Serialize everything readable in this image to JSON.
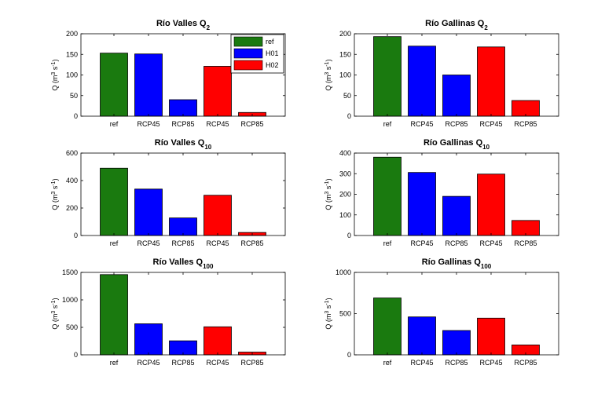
{
  "figure": {
    "legend": {
      "position": "top-right",
      "entries": [
        {
          "label": "ref",
          "color": "#1a7a0f"
        },
        {
          "label": "H01",
          "color": "#0000ff"
        },
        {
          "label": "H02",
          "color": "#ff0000"
        }
      ]
    }
  },
  "chart_data": [
    {
      "type": "bar",
      "title": {
        "main": "Río Valles Q",
        "sub": "2"
      },
      "ylabel": {
        "base": "Q (m",
        "sup1": "3",
        "mid": " s",
        "sup2": "-1",
        "end": ")"
      },
      "categories": [
        "ref",
        "RCP45",
        "RCP85",
        "RCP45",
        "RCP85"
      ],
      "values": [
        153,
        151,
        40,
        121,
        9
      ],
      "colors": [
        "#1a7a0f",
        "#0000ff",
        "#0000ff",
        "#ff0000",
        "#ff0000"
      ],
      "ylim": [
        0,
        200
      ],
      "yticks": [
        0,
        50,
        100,
        150,
        200
      ],
      "legend": true
    },
    {
      "type": "bar",
      "title": {
        "main": "Río Gallinas  Q",
        "sub": "2"
      },
      "ylabel": {
        "base": "Q (m",
        "sup1": "3",
        "mid": " s",
        "sup2": "-1",
        "end": ")"
      },
      "categories": [
        "ref",
        "RCP45",
        "RCP85",
        "RCP45",
        "RCP85"
      ],
      "values": [
        193,
        170,
        100,
        168,
        38
      ],
      "colors": [
        "#1a7a0f",
        "#0000ff",
        "#0000ff",
        "#ff0000",
        "#ff0000"
      ],
      "ylim": [
        0,
        200
      ],
      "yticks": [
        0,
        50,
        100,
        150,
        200
      ],
      "legend": false
    },
    {
      "type": "bar",
      "title": {
        "main": "Río Valles Q",
        "sub": "10"
      },
      "ylabel": {
        "base": "Q (m",
        "sup1": "3",
        "mid": " s",
        "sup2": "-1",
        "end": ")"
      },
      "categories": [
        "ref",
        "RCP45",
        "RCP85",
        "RCP45",
        "RCP85"
      ],
      "values": [
        490,
        338,
        128,
        293,
        22
      ],
      "colors": [
        "#1a7a0f",
        "#0000ff",
        "#0000ff",
        "#ff0000",
        "#ff0000"
      ],
      "ylim": [
        0,
        600
      ],
      "yticks": [
        0,
        200,
        400,
        600
      ],
      "legend": false
    },
    {
      "type": "bar",
      "title": {
        "main": "Río Gallinas  Q",
        "sub": "10"
      },
      "ylabel": {
        "base": "Q (m",
        "sup1": "3",
        "mid": " s",
        "sup2": "-1",
        "end": ")"
      },
      "categories": [
        "ref",
        "RCP45",
        "RCP85",
        "RCP45",
        "RCP85"
      ],
      "values": [
        380,
        306,
        190,
        298,
        73
      ],
      "colors": [
        "#1a7a0f",
        "#0000ff",
        "#0000ff",
        "#ff0000",
        "#ff0000"
      ],
      "ylim": [
        0,
        400
      ],
      "yticks": [
        0,
        100,
        200,
        300,
        400
      ],
      "legend": false
    },
    {
      "type": "bar",
      "title": {
        "main": "Río Valles Q",
        "sub": "100"
      },
      "ylabel": {
        "base": "Q (m",
        "sup1": "3",
        "mid": " s",
        "sup2": "-1",
        "end": ")"
      },
      "categories": [
        "ref",
        "RCP45",
        "RCP85",
        "RCP45",
        "RCP85"
      ],
      "values": [
        1460,
        565,
        255,
        510,
        50
      ],
      "colors": [
        "#1a7a0f",
        "#0000ff",
        "#0000ff",
        "#ff0000",
        "#ff0000"
      ],
      "ylim": [
        0,
        1500
      ],
      "yticks": [
        0,
        500,
        1000,
        1500
      ],
      "legend": false
    },
    {
      "type": "bar",
      "title": {
        "main": "Río Gallinas  Q",
        "sub": "100"
      },
      "ylabel": {
        "base": "Q (m",
        "sup1": "3",
        "mid": " s",
        "sup2": "-1",
        "end": ")"
      },
      "categories": [
        "ref",
        "RCP45",
        "RCP85",
        "RCP45",
        "RCP85"
      ],
      "values": [
        690,
        460,
        295,
        445,
        120
      ],
      "colors": [
        "#1a7a0f",
        "#0000ff",
        "#0000ff",
        "#ff0000",
        "#ff0000"
      ],
      "ylim": [
        0,
        1000
      ],
      "yticks": [
        0,
        500,
        1000
      ],
      "legend": false
    }
  ]
}
